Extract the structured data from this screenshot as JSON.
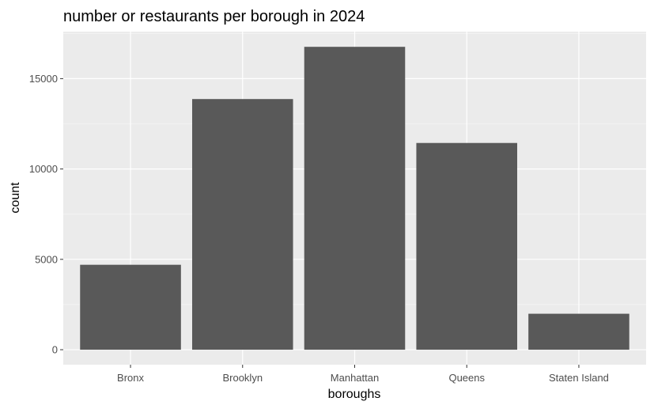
{
  "chart_data": {
    "type": "bar",
    "title": "number or restaurants per borough in 2024",
    "xlabel": "boroughs",
    "ylabel": "count",
    "categories": [
      "Bronx",
      "Brooklyn",
      "Manhattan",
      "Queens",
      "Staten Island"
    ],
    "values": [
      4700,
      13870,
      16760,
      11440,
      1990
    ],
    "ylim": [
      -830,
      17600
    ],
    "yticks": [
      0,
      5000,
      10000,
      15000
    ],
    "yminor": [
      2500,
      7500,
      12500,
      17500
    ],
    "grid": true,
    "legend": "none",
    "colors": {
      "bar": "#595959",
      "panel": "#ebebeb",
      "grid_major": "#ffffff",
      "grid_minor": "#f5f5f5",
      "tick_label": "#4d4d4d"
    }
  }
}
